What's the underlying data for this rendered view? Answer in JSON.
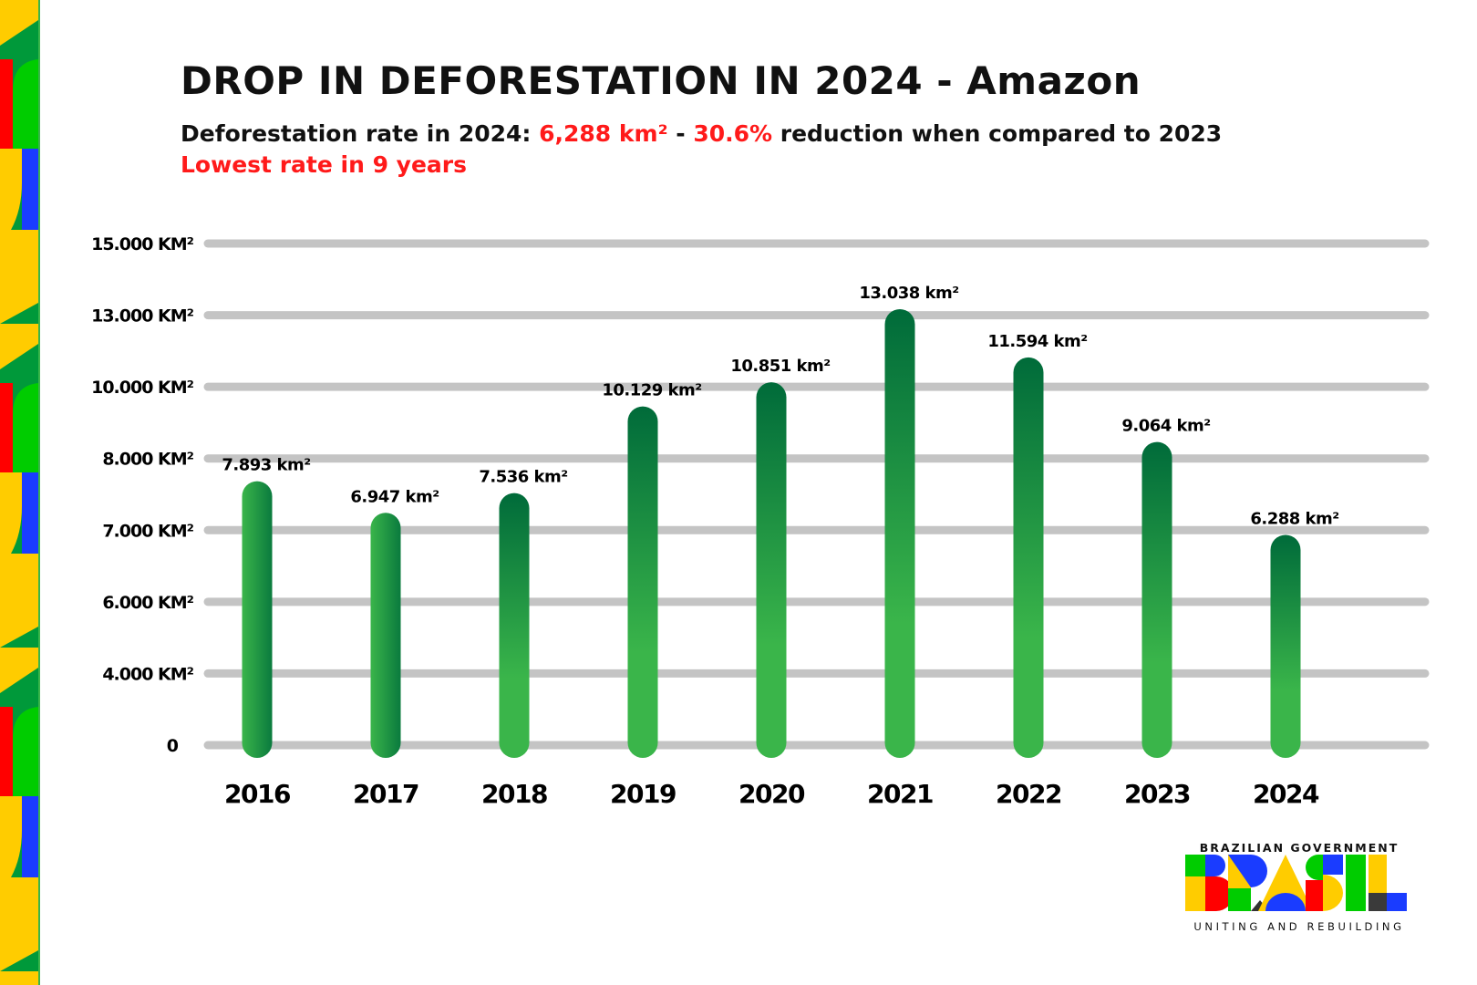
{
  "header": {
    "title": "DROP IN DEFORESTATION IN 2024 - Amazon",
    "subtitle_prefix": "Deforestation rate in 2024: ",
    "subtitle_value": "6,288 km²",
    "subtitle_sep": " - ",
    "subtitle_pct": "30.6%",
    "subtitle_suffix": " reduction when compared to 2023",
    "highlight": "Lowest rate in 9 years"
  },
  "colors": {
    "accent_red": "#ff1a1a",
    "bar_dark": "#006b3a",
    "bar_light": "#3ab54a",
    "grid": "#c4c4c4"
  },
  "chart_data": {
    "type": "bar",
    "title": "DROP IN DEFORESTATION IN 2024 - Amazon",
    "categories": [
      "2016",
      "2017",
      "2018",
      "2019",
      "2020",
      "2021",
      "2022",
      "2023",
      "2024"
    ],
    "values": [
      7893,
      6947,
      7536,
      10129,
      10851,
      13038,
      11594,
      9064,
      6288
    ],
    "data_labels": [
      "7.893 km²",
      "6.947 km²",
      "7.536 km²",
      "10.129 km²",
      "10.851 km²",
      "13.038 km²",
      "11.594 km²",
      "9.064 km²",
      "6.288  km²"
    ],
    "ytick_labels": [
      "15.000 KM²",
      "13.000 KM²",
      "10.000 KM²",
      "8.000 KM²",
      "7.000 KM²",
      "6.000 KM²",
      "4.000 KM²",
      "0"
    ],
    "ylim": [
      0,
      15000
    ],
    "grid": true,
    "legend": "none"
  },
  "logo": {
    "top": "BRAZILIAN GOVERNMENT",
    "word": "BRASIL",
    "bottom": "UNITING AND REBUILDING"
  }
}
